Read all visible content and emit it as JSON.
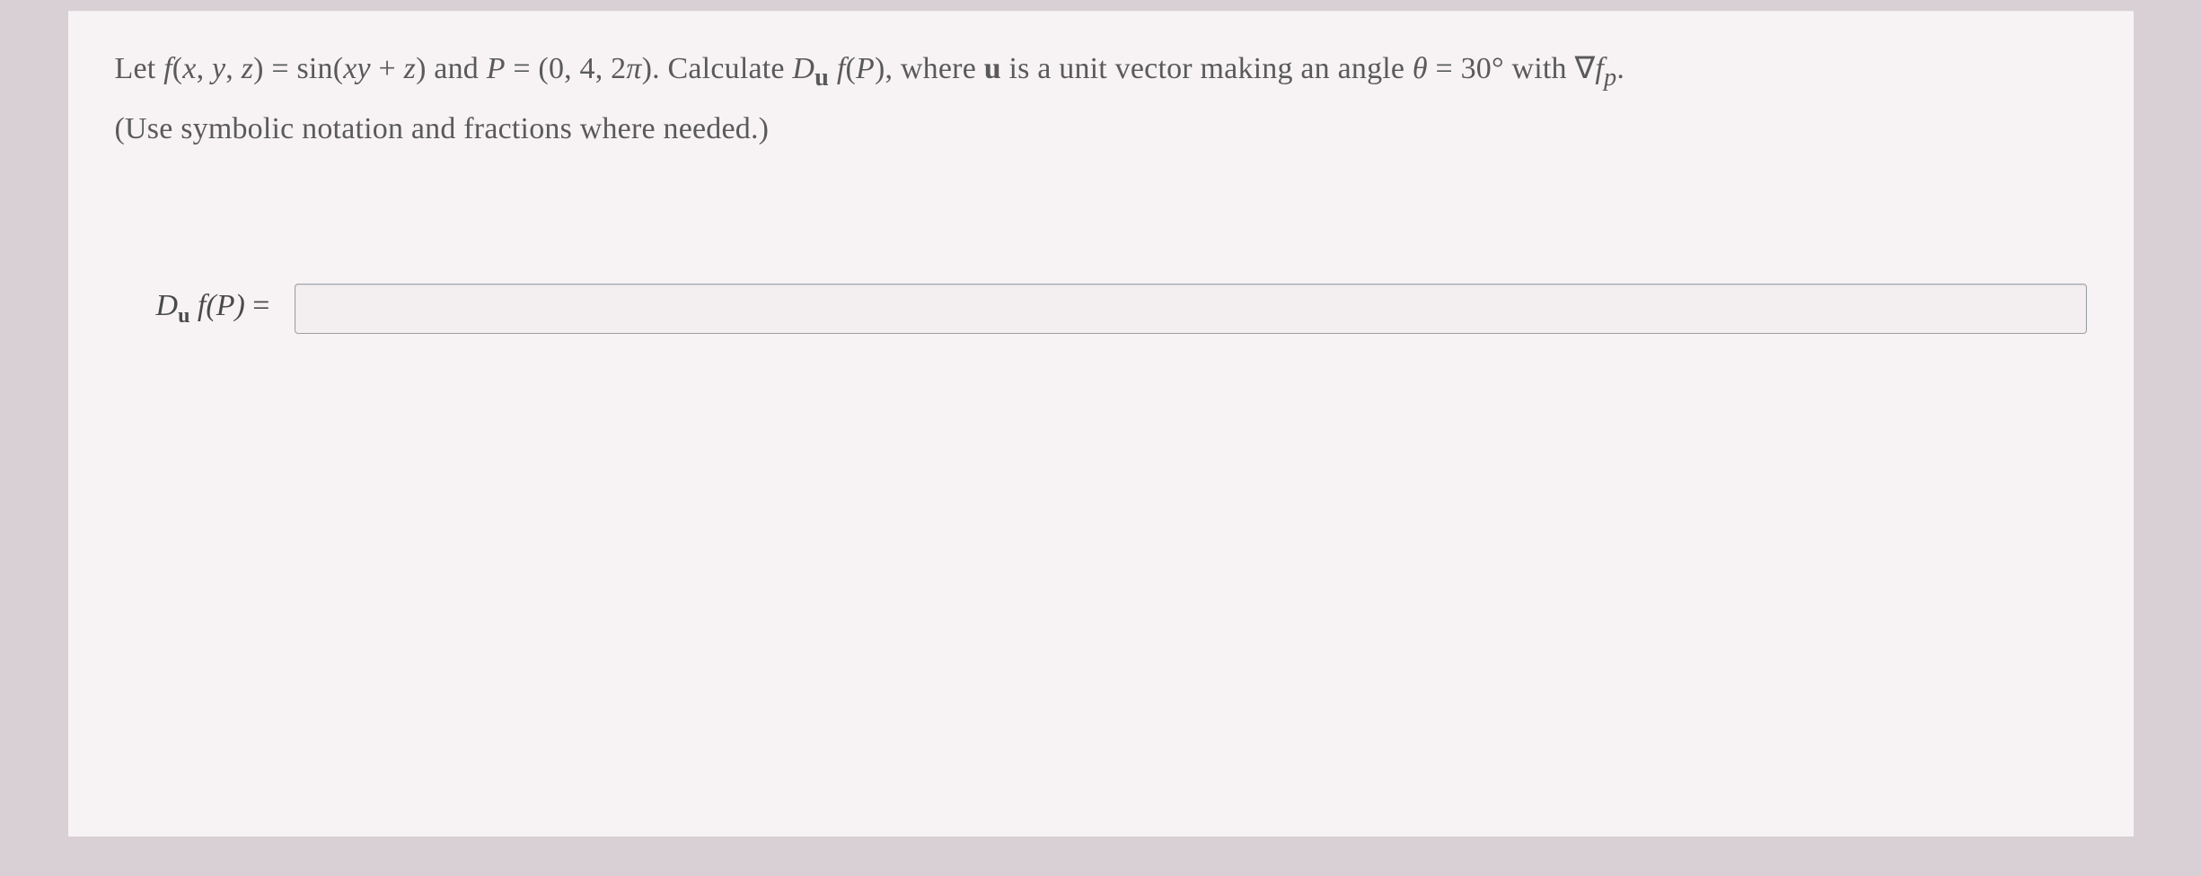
{
  "card": {
    "background_color": "#f7f3f5",
    "page_background_color": "#d8d0d4",
    "text_color": "#5a5a5a",
    "font_family": "Times New Roman",
    "body_fontsize_pt": 26
  },
  "problem": {
    "line1_html": "Let <span class='math'>f</span>(<span class='math'>x</span>, <span class='math'>y</span>, <span class='math'>z</span>) = sin(<span class='math'>xy</span> + <span class='math'>z</span>) and <span class='math'>P</span> = (0, 4, 2<span class='math'>π</span>). Calculate <span class='math'>D</span><sub><b>u</b></sub> <span class='math'>f</span>(<span class='math'>P</span>), where <b>u</b> is a unit vector making an angle <span class='math'>θ</span> = 30° with ∇<span class='math'>f</span><sub><span class='math'>p</span></sub>.",
    "line2_html": "(Use symbolic notation and fractions where needed.)"
  },
  "answer": {
    "label_html": "D<span class='sub'>u</span> f(P) <span class='rm'>=</span>",
    "value": "",
    "placeholder": ""
  }
}
